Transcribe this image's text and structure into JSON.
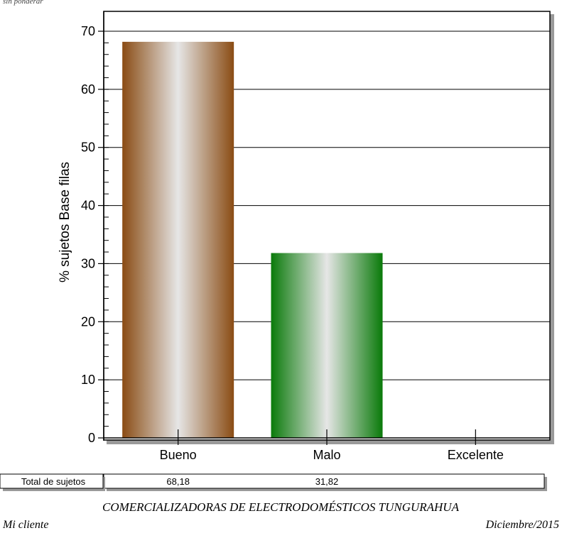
{
  "top_note": "sin ponderar",
  "chart_data": {
    "type": "bar",
    "ylabel": "% sujetos Base filas",
    "xlabel": "",
    "categories": [
      "Bueno",
      "Malo",
      "Excelente"
    ],
    "values": [
      68.18,
      31.82,
      0
    ],
    "ylim": [
      0,
      70
    ],
    "yticks": [
      0,
      10,
      20,
      30,
      40,
      50,
      60,
      70
    ],
    "y_minor_step": 2,
    "grid": "horizontal",
    "bar_colors": [
      "#8a4c14",
      "#0a7a0a",
      "#1f3fa6"
    ],
    "bar_highlight": "#e6e6e6"
  },
  "totals_row": {
    "label": "Total de sujetos",
    "values": [
      "68,18",
      "31,82",
      ""
    ]
  },
  "footer": {
    "title": "COMERCIALIZADORAS DE ELECTRODOMÉSTICOS TUNGURAHUA",
    "client": "Mi cliente",
    "date": "Diciembre/2015"
  }
}
